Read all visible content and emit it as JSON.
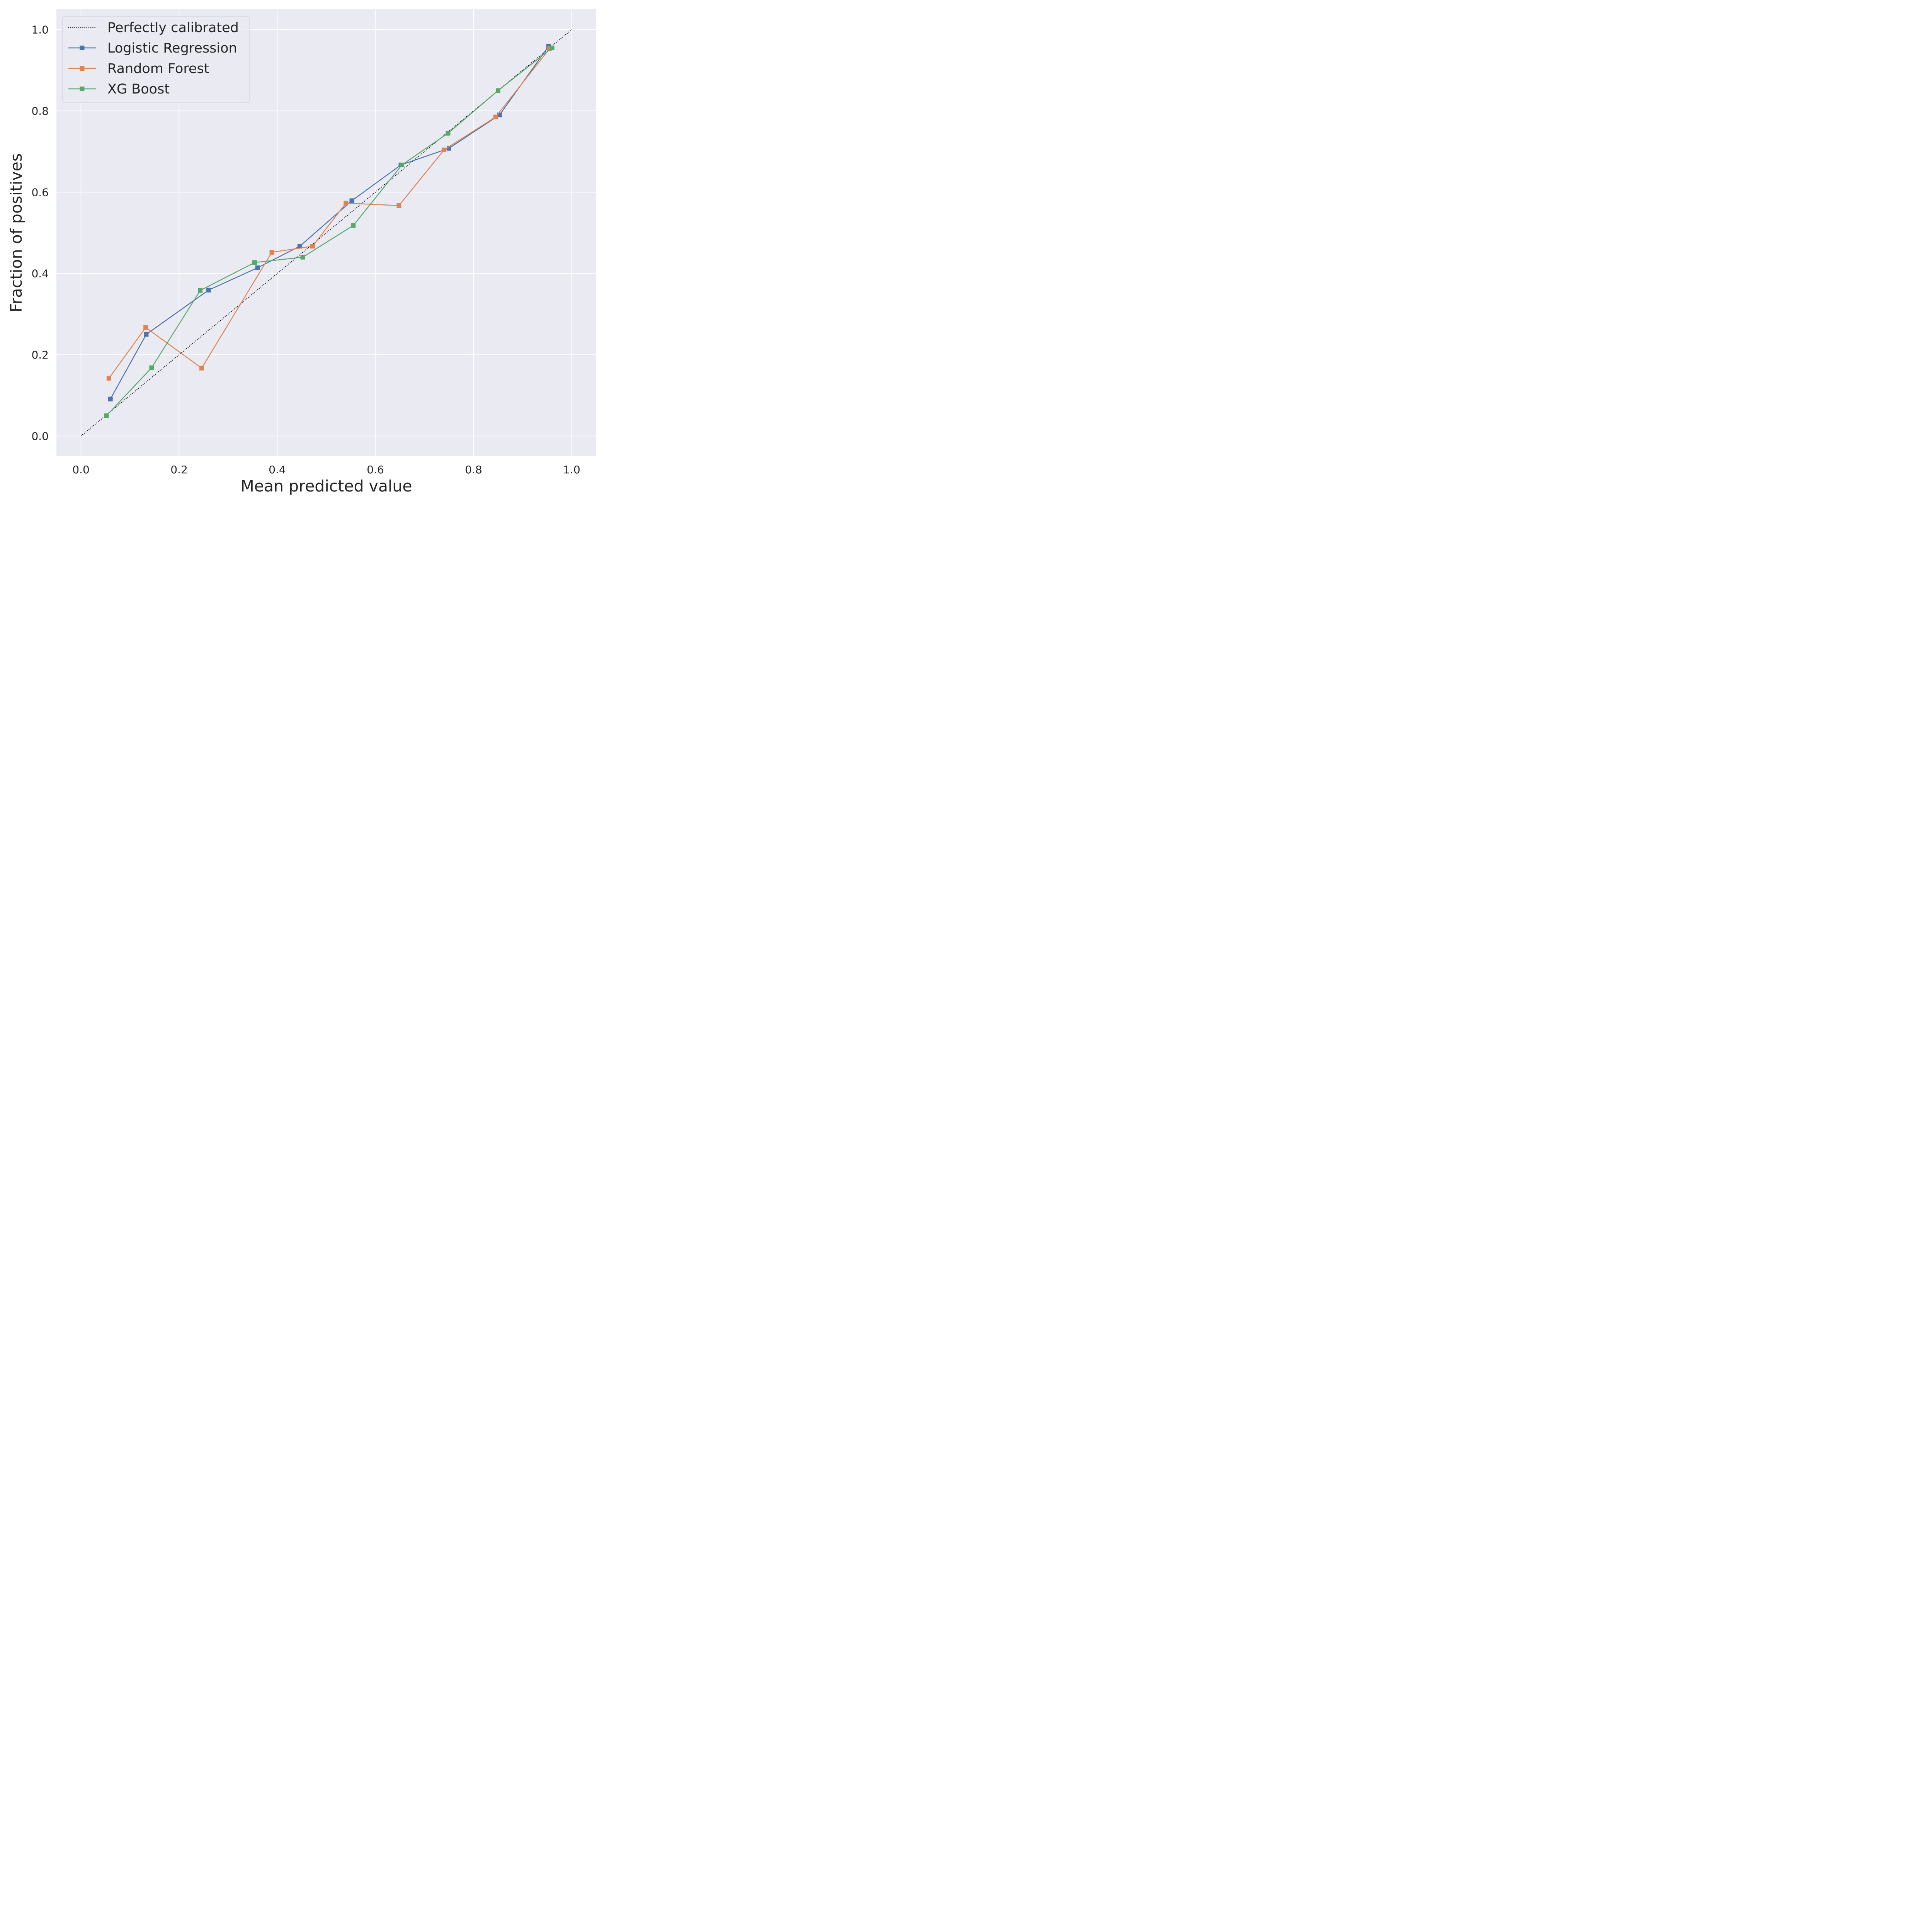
{
  "chart_data": {
    "type": "line",
    "xlabel": "Mean predicted value",
    "ylabel": "Fraction of positives",
    "xlim": [
      -0.05,
      1.05
    ],
    "ylim": [
      -0.05,
      1.05
    ],
    "x_ticks": [
      "0.0",
      "0.2",
      "0.4",
      "0.6",
      "0.8",
      "1.0"
    ],
    "y_ticks": [
      "0.0",
      "0.2",
      "0.4",
      "0.6",
      "0.8",
      "1.0"
    ],
    "grid": true,
    "legend_position": "top-left",
    "reference": {
      "name": "Perfectly calibrated",
      "x": [
        0,
        1
      ],
      "y": [
        0,
        1
      ],
      "style": "dotted",
      "color": "#000000"
    },
    "series": [
      {
        "name": "Logistic Regression",
        "color": "#4C72B0",
        "marker": "square",
        "x": [
          0.06,
          0.133,
          0.26,
          0.36,
          0.446,
          0.552,
          0.652,
          0.75,
          0.853,
          0.953
        ],
        "y": [
          0.091,
          0.25,
          0.359,
          0.414,
          0.467,
          0.579,
          0.667,
          0.708,
          0.79,
          0.959
        ]
      },
      {
        "name": "Random Forest",
        "color": "#DD8452",
        "marker": "square",
        "x": [
          0.057,
          0.132,
          0.246,
          0.389,
          0.472,
          0.54,
          0.648,
          0.74,
          0.845,
          0.955
        ],
        "y": [
          0.142,
          0.267,
          0.167,
          0.452,
          0.467,
          0.573,
          0.567,
          0.704,
          0.785,
          0.953
        ]
      },
      {
        "name": "XG Boost",
        "color": "#55A868",
        "marker": "square",
        "x": [
          0.052,
          0.144,
          0.243,
          0.354,
          0.452,
          0.555,
          0.654,
          0.748,
          0.85,
          0.96
        ],
        "y": [
          0.05,
          0.168,
          0.358,
          0.427,
          0.44,
          0.518,
          0.667,
          0.745,
          0.85,
          0.955
        ]
      }
    ]
  },
  "colors": {
    "plot_background": "#EAEAF2",
    "grid": "#FFFFFF",
    "text": "#262626"
  }
}
